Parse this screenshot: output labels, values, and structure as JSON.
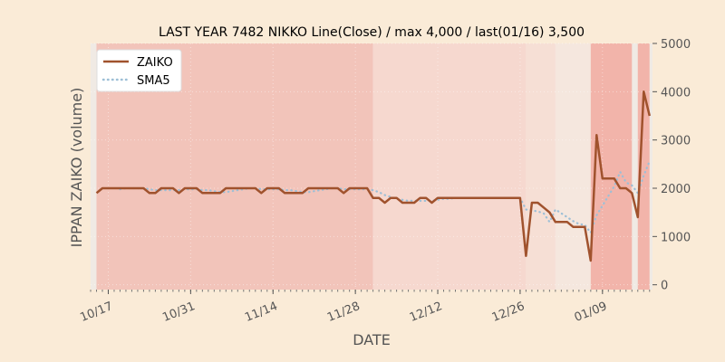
{
  "chart_data": {
    "type": "line",
    "title": "LAST YEAR 7482 NIKKO Line(Close) / max 4,000 / last(01/16) 3,500",
    "xlabel": "DATE",
    "ylabel": "IPPAN ZAIKO (volume)",
    "ylim": [
      -100,
      5000
    ],
    "y_ticks": [
      0,
      1000,
      2000,
      3000,
      4000,
      5000
    ],
    "y_axis_side": "right",
    "x_range": [
      "2023-10-14",
      "2024-01-17"
    ],
    "x_ticks": [
      {
        "date": "2023-10-17",
        "label": "10/17"
      },
      {
        "date": "2023-10-31",
        "label": "10/31"
      },
      {
        "date": "2023-11-14",
        "label": "11/14"
      },
      {
        "date": "2023-11-28",
        "label": "11/28"
      },
      {
        "date": "2023-12-12",
        "label": "12/12"
      },
      {
        "date": "2023-12-26",
        "label": "12/26"
      },
      {
        "date": "2024-01-09",
        "label": "01/09"
      }
    ],
    "grid": true,
    "legend_position": "top-left",
    "background_bands": [
      {
        "start": "2023-10-15",
        "end": "2023-12-01",
        "color": "#f2c4ba"
      },
      {
        "start": "2023-12-01",
        "end": "2023-12-27",
        "color": "#f6d8cf"
      },
      {
        "start": "2023-12-27",
        "end": "2024-01-01",
        "color": "#f6dfd5"
      },
      {
        "start": "2024-01-01",
        "end": "2024-01-07",
        "color": "#f5e7de"
      },
      {
        "start": "2024-01-07",
        "end": "2024-01-14",
        "color": "#f2b4aa"
      },
      {
        "start": "2024-01-15",
        "end": "2024-01-17",
        "color": "#f2b4aa"
      }
    ],
    "series": [
      {
        "name": "ZAIKO",
        "color": "#a0522d",
        "style": "solid",
        "points": [
          [
            "2023-10-15",
            1900
          ],
          [
            "2023-10-16",
            2000
          ],
          [
            "2023-10-17",
            2000
          ],
          [
            "2023-10-18",
            2000
          ],
          [
            "2023-10-19",
            2000
          ],
          [
            "2023-10-20",
            2000
          ],
          [
            "2023-10-21",
            2000
          ],
          [
            "2023-10-22",
            2000
          ],
          [
            "2023-10-23",
            2000
          ],
          [
            "2023-10-24",
            1900
          ],
          [
            "2023-10-25",
            1900
          ],
          [
            "2023-10-26",
            2000
          ],
          [
            "2023-10-27",
            2000
          ],
          [
            "2023-10-28",
            2000
          ],
          [
            "2023-10-29",
            1900
          ],
          [
            "2023-10-30",
            2000
          ],
          [
            "2023-10-31",
            2000
          ],
          [
            "2023-11-01",
            2000
          ],
          [
            "2023-11-02",
            1900
          ],
          [
            "2023-11-03",
            1900
          ],
          [
            "2023-11-04",
            1900
          ],
          [
            "2023-11-05",
            1900
          ],
          [
            "2023-11-06",
            2000
          ],
          [
            "2023-11-07",
            2000
          ],
          [
            "2023-11-08",
            2000
          ],
          [
            "2023-11-09",
            2000
          ],
          [
            "2023-11-10",
            2000
          ],
          [
            "2023-11-11",
            2000
          ],
          [
            "2023-11-12",
            1900
          ],
          [
            "2023-11-13",
            2000
          ],
          [
            "2023-11-14",
            2000
          ],
          [
            "2023-11-15",
            2000
          ],
          [
            "2023-11-16",
            1900
          ],
          [
            "2023-11-17",
            1900
          ],
          [
            "2023-11-18",
            1900
          ],
          [
            "2023-11-19",
            1900
          ],
          [
            "2023-11-20",
            2000
          ],
          [
            "2023-11-21",
            2000
          ],
          [
            "2023-11-22",
            2000
          ],
          [
            "2023-11-23",
            2000
          ],
          [
            "2023-11-24",
            2000
          ],
          [
            "2023-11-25",
            2000
          ],
          [
            "2023-11-26",
            1900
          ],
          [
            "2023-11-27",
            2000
          ],
          [
            "2023-11-28",
            2000
          ],
          [
            "2023-11-29",
            2000
          ],
          [
            "2023-11-30",
            2000
          ],
          [
            "2023-12-01",
            1800
          ],
          [
            "2023-12-02",
            1800
          ],
          [
            "2023-12-03",
            1700
          ],
          [
            "2023-12-04",
            1800
          ],
          [
            "2023-12-05",
            1800
          ],
          [
            "2023-12-06",
            1700
          ],
          [
            "2023-12-07",
            1700
          ],
          [
            "2023-12-08",
            1700
          ],
          [
            "2023-12-09",
            1800
          ],
          [
            "2023-12-10",
            1800
          ],
          [
            "2023-12-11",
            1700
          ],
          [
            "2023-12-12",
            1800
          ],
          [
            "2023-12-13",
            1800
          ],
          [
            "2023-12-14",
            1800
          ],
          [
            "2023-12-15",
            1800
          ],
          [
            "2023-12-16",
            1800
          ],
          [
            "2023-12-17",
            1800
          ],
          [
            "2023-12-18",
            1800
          ],
          [
            "2023-12-19",
            1800
          ],
          [
            "2023-12-20",
            1800
          ],
          [
            "2023-12-21",
            1800
          ],
          [
            "2023-12-22",
            1800
          ],
          [
            "2023-12-23",
            1800
          ],
          [
            "2023-12-24",
            1800
          ],
          [
            "2023-12-25",
            1800
          ],
          [
            "2023-12-26",
            1800
          ],
          [
            "2023-12-27",
            600
          ],
          [
            "2023-12-28",
            1700
          ],
          [
            "2023-12-29",
            1700
          ],
          [
            "2023-12-30",
            1600
          ],
          [
            "2023-12-31",
            1500
          ],
          [
            "2024-01-01",
            1300
          ],
          [
            "2024-01-02",
            1300
          ],
          [
            "2024-01-03",
            1300
          ],
          [
            "2024-01-04",
            1200
          ],
          [
            "2024-01-05",
            1200
          ],
          [
            "2024-01-06",
            1200
          ],
          [
            "2024-01-07",
            500
          ],
          [
            "2024-01-08",
            3100
          ],
          [
            "2024-01-09",
            2200
          ],
          [
            "2024-01-10",
            2200
          ],
          [
            "2024-01-11",
            2200
          ],
          [
            "2024-01-12",
            2000
          ],
          [
            "2024-01-13",
            2000
          ],
          [
            "2024-01-14",
            1900
          ],
          [
            "2024-01-15",
            1400
          ],
          [
            "2024-01-16",
            4000
          ],
          [
            "2024-01-17",
            3500
          ]
        ]
      },
      {
        "name": "SMA5",
        "color": "#9dbfd6",
        "style": "dotted",
        "points": [
          [
            "2023-10-19",
            1980
          ],
          [
            "2023-10-20",
            2000
          ],
          [
            "2023-10-21",
            2000
          ],
          [
            "2023-10-22",
            2000
          ],
          [
            "2023-10-23",
            2000
          ],
          [
            "2023-10-24",
            1980
          ],
          [
            "2023-10-25",
            1960
          ],
          [
            "2023-10-26",
            1960
          ],
          [
            "2023-10-27",
            1960
          ],
          [
            "2023-10-28",
            1960
          ],
          [
            "2023-10-29",
            1960
          ],
          [
            "2023-10-30",
            1980
          ],
          [
            "2023-10-31",
            1980
          ],
          [
            "2023-11-01",
            1980
          ],
          [
            "2023-11-02",
            1960
          ],
          [
            "2023-11-03",
            1960
          ],
          [
            "2023-11-04",
            1940
          ],
          [
            "2023-11-05",
            1920
          ],
          [
            "2023-11-06",
            1920
          ],
          [
            "2023-11-07",
            1940
          ],
          [
            "2023-11-08",
            1960
          ],
          [
            "2023-11-09",
            1980
          ],
          [
            "2023-11-10",
            2000
          ],
          [
            "2023-11-11",
            2000
          ],
          [
            "2023-11-12",
            1980
          ],
          [
            "2023-11-13",
            1980
          ],
          [
            "2023-11-14",
            1980
          ],
          [
            "2023-11-15",
            1980
          ],
          [
            "2023-11-16",
            1960
          ],
          [
            "2023-11-17",
            1960
          ],
          [
            "2023-11-18",
            1940
          ],
          [
            "2023-11-19",
            1920
          ],
          [
            "2023-11-20",
            1920
          ],
          [
            "2023-11-21",
            1940
          ],
          [
            "2023-11-22",
            1960
          ],
          [
            "2023-11-23",
            1980
          ],
          [
            "2023-11-24",
            2000
          ],
          [
            "2023-11-25",
            2000
          ],
          [
            "2023-11-26",
            1980
          ],
          [
            "2023-11-27",
            1980
          ],
          [
            "2023-11-28",
            1980
          ],
          [
            "2023-11-29",
            1980
          ],
          [
            "2023-11-30",
            1980
          ],
          [
            "2023-12-01",
            1960
          ],
          [
            "2023-12-02",
            1920
          ],
          [
            "2023-12-03",
            1860
          ],
          [
            "2023-12-04",
            1820
          ],
          [
            "2023-12-05",
            1780
          ],
          [
            "2023-12-06",
            1760
          ],
          [
            "2023-12-07",
            1740
          ],
          [
            "2023-12-08",
            1740
          ],
          [
            "2023-12-09",
            1740
          ],
          [
            "2023-12-10",
            1740
          ],
          [
            "2023-12-11",
            1740
          ],
          [
            "2023-12-12",
            1760
          ],
          [
            "2023-12-13",
            1780
          ],
          [
            "2023-12-14",
            1780
          ],
          [
            "2023-12-15",
            1800
          ],
          [
            "2023-12-16",
            1800
          ],
          [
            "2023-12-17",
            1800
          ],
          [
            "2023-12-18",
            1800
          ],
          [
            "2023-12-19",
            1800
          ],
          [
            "2023-12-20",
            1800
          ],
          [
            "2023-12-21",
            1800
          ],
          [
            "2023-12-22",
            1800
          ],
          [
            "2023-12-23",
            1800
          ],
          [
            "2023-12-24",
            1800
          ],
          [
            "2023-12-25",
            1800
          ],
          [
            "2023-12-26",
            1800
          ],
          [
            "2023-12-27",
            1560
          ],
          [
            "2023-12-28",
            1540
          ],
          [
            "2023-12-29",
            1520
          ],
          [
            "2023-12-30",
            1480
          ],
          [
            "2023-12-31",
            1300
          ],
          [
            "2024-01-01",
            1560
          ],
          [
            "2024-01-02",
            1480
          ],
          [
            "2024-01-03",
            1400
          ],
          [
            "2024-01-04",
            1320
          ],
          [
            "2024-01-05",
            1260
          ],
          [
            "2024-01-06",
            1240
          ],
          [
            "2024-01-07",
            1080
          ],
          [
            "2024-01-08",
            1440
          ],
          [
            "2024-01-09",
            1640
          ],
          [
            "2024-01-10",
            1840
          ],
          [
            "2024-01-11",
            2040
          ],
          [
            "2024-01-12",
            2340
          ],
          [
            "2024-01-13",
            2120
          ],
          [
            "2024-01-14",
            2060
          ],
          [
            "2024-01-15",
            1900
          ],
          [
            "2024-01-16",
            2260
          ],
          [
            "2024-01-17",
            2560
          ]
        ]
      }
    ]
  }
}
